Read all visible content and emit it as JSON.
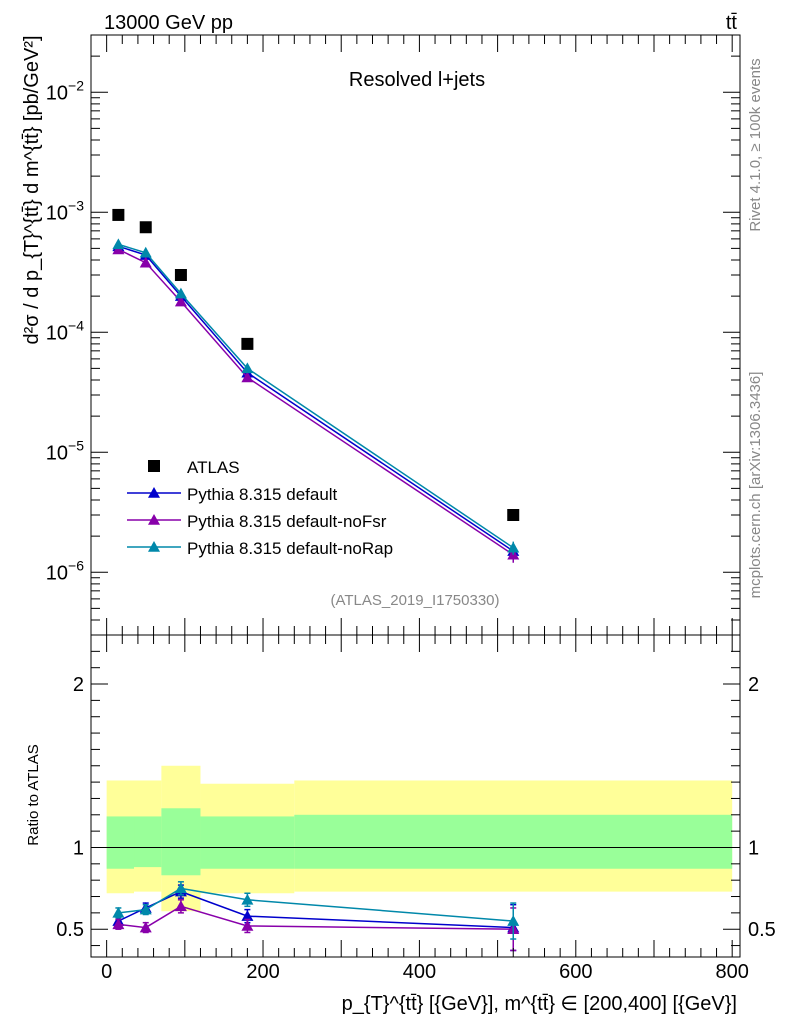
{
  "header": {
    "energy_label": "13000 GeV pp",
    "process_label": "tt̄"
  },
  "side": {
    "rivet_label": "Rivet 4.1.0, ≥ 100k events",
    "mcplots_label": "mcplots.cern.ch [arXiv:1306.3436]"
  },
  "analysis_label": "(ATLAS_2019_I1750330)",
  "chart_data": [
    {
      "type": "scatter",
      "title": "Resolved l+jets",
      "xlabel": "p_{T}^{tt̄} [{GeV}], m^{tt̄} ∈ [200,400] [{GeV}]",
      "ylabel": "d²σ / d p_{T}^{tt̄} d m^{tt̄} [pb/GeV²]",
      "yscale": "log",
      "xlim": [
        -20,
        810
      ],
      "ylim": [
        3e-07,
        0.03
      ],
      "yticks": [
        {
          "value": 1e-06,
          "base": "10",
          "exp": "−6"
        },
        {
          "value": 1e-05,
          "base": "10",
          "exp": "−5"
        },
        {
          "value": 0.0001,
          "base": "10",
          "exp": "−4"
        },
        {
          "value": 0.001,
          "base": "10",
          "exp": "−3"
        },
        {
          "value": 0.01,
          "base": "10",
          "exp": "−2"
        }
      ],
      "x": [
        15,
        50,
        95,
        180,
        520
      ],
      "data": {
        "name": "ATLAS",
        "color": "#000000",
        "values": [
          0.00095,
          0.00075,
          0.0003,
          8e-05,
          3e-06
        ]
      },
      "series": [
        {
          "name": "Pythia 8.315 default",
          "color": "#0000cc",
          "values": [
            0.00052,
            0.00044,
            0.0002,
            4.6e-05,
            1.5e-06
          ],
          "errors": [
            0,
            0,
            0,
            0,
            2e-07
          ]
        },
        {
          "name": "Pythia 8.315 default-noFsr",
          "color": "#8800aa",
          "values": [
            0.00049,
            0.00038,
            0.00018,
            4.2e-05,
            1.4e-06
          ],
          "errors": [
            0,
            0,
            0,
            0,
            2e-07
          ]
        },
        {
          "name": "Pythia 8.315 default-noRap",
          "color": "#0088aa",
          "values": [
            0.00054,
            0.00046,
            0.00021,
            5e-05,
            1.6e-06
          ],
          "errors": [
            0,
            0,
            0,
            0,
            2e-07
          ]
        }
      ]
    },
    {
      "type": "line",
      "title": "",
      "xlabel": "p_{T}^{tt̄} [{GeV}], m^{tt̄} ∈ [200,400] [{GeV}]",
      "ylabel": "Ratio to ATLAS",
      "xlim": [
        -20,
        810
      ],
      "ylim": [
        0.33,
        2.3
      ],
      "xticks": [
        0,
        200,
        400,
        600,
        800
      ],
      "yticks": [
        0.5,
        1,
        2
      ],
      "bins": [
        {
          "lo": 0,
          "hi": 35,
          "inner": [
            0.87,
            1.19
          ],
          "outer": [
            0.72,
            1.41
          ]
        },
        {
          "lo": 35,
          "hi": 70,
          "inner": [
            0.88,
            1.19
          ],
          "outer": [
            0.73,
            1.41
          ]
        },
        {
          "lo": 70,
          "hi": 120,
          "inner": [
            0.83,
            1.24
          ],
          "outer": [
            0.61,
            1.5
          ]
        },
        {
          "lo": 120,
          "hi": 240,
          "inner": [
            0.87,
            1.19
          ],
          "outer": [
            0.72,
            1.39
          ]
        },
        {
          "lo": 240,
          "hi": 800,
          "inner": [
            0.87,
            1.2
          ],
          "outer": [
            0.73,
            1.41
          ]
        }
      ],
      "band_colors": {
        "inner": "#99ff99",
        "outer": "#ffff99"
      },
      "x": [
        15,
        50,
        95,
        180,
        520
      ],
      "series": [
        {
          "name": "Pythia 8.315 default",
          "color": "#0000cc",
          "values": [
            0.55,
            0.63,
            0.73,
            0.58,
            0.51
          ],
          "errors": [
            0.03,
            0.03,
            0.04,
            0.04,
            0.14
          ]
        },
        {
          "name": "Pythia 8.315 default-noFsr",
          "color": "#8800aa",
          "values": [
            0.53,
            0.51,
            0.64,
            0.52,
            0.5
          ],
          "errors": [
            0.03,
            0.03,
            0.04,
            0.04,
            0.13
          ]
        },
        {
          "name": "Pythia 8.315 default-noRap",
          "color": "#0088aa",
          "values": [
            0.6,
            0.62,
            0.75,
            0.68,
            0.55
          ],
          "errors": [
            0.03,
            0.03,
            0.04,
            0.04,
            0.11
          ]
        }
      ]
    }
  ]
}
